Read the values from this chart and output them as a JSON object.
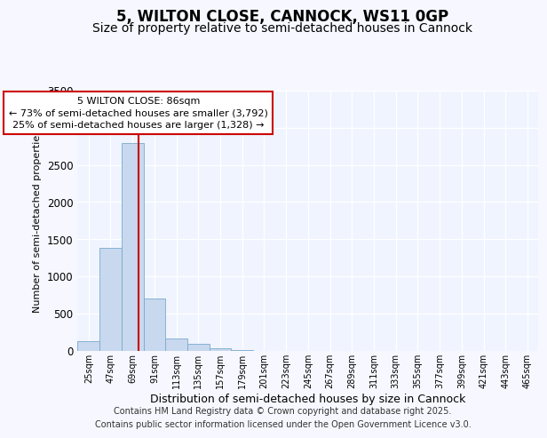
{
  "title": "5, WILTON CLOSE, CANNOCK, WS11 0GP",
  "subtitle": "Size of property relative to semi-detached houses in Cannock",
  "xlabel": "Distribution of semi-detached houses by size in Cannock",
  "ylabel": "Number of semi-detached properties",
  "bin_labels": [
    "25sqm",
    "47sqm",
    "69sqm",
    "91sqm",
    "113sqm",
    "135sqm",
    "157sqm",
    "179sqm",
    "201sqm",
    "223sqm",
    "245sqm",
    "267sqm",
    "289sqm",
    "311sqm",
    "333sqm",
    "355sqm",
    "377sqm",
    "399sqm",
    "421sqm",
    "443sqm",
    "465sqm"
  ],
  "bin_edges": [
    25,
    47,
    69,
    91,
    113,
    135,
    157,
    179,
    201,
    223,
    245,
    267,
    289,
    311,
    333,
    355,
    377,
    399,
    421,
    443,
    465
  ],
  "bar_heights": [
    130,
    1380,
    2800,
    700,
    165,
    90,
    35,
    5,
    0,
    0,
    0,
    0,
    0,
    0,
    0,
    0,
    0,
    0,
    0,
    0,
    0
  ],
  "bar_color": "#c8d8ee",
  "bar_edge_color": "#7aaace",
  "property_size": 86,
  "vline_color": "#cc0000",
  "annotation_line1": "5 WILTON CLOSE: 86sqm",
  "annotation_line2": "← 73% of semi-detached houses are smaller (3,792)",
  "annotation_line3": "25% of semi-detached houses are larger (1,328) →",
  "annotation_box_color": "#ffffff",
  "annotation_box_edge": "#cc0000",
  "ylim": [
    0,
    3500
  ],
  "yticks": [
    0,
    500,
    1000,
    1500,
    2000,
    2500,
    3000,
    3500
  ],
  "background_color": "#f7f8ff",
  "plot_background": "#f0f4ff",
  "grid_color": "#ffffff",
  "footer_line1": "Contains HM Land Registry data © Crown copyright and database right 2025.",
  "footer_line2": "Contains public sector information licensed under the Open Government Licence v3.0.",
  "title_fontsize": 12,
  "subtitle_fontsize": 10,
  "annotation_fontsize": 8,
  "ylabel_fontsize": 8,
  "xlabel_fontsize": 9,
  "footer_fontsize": 7
}
